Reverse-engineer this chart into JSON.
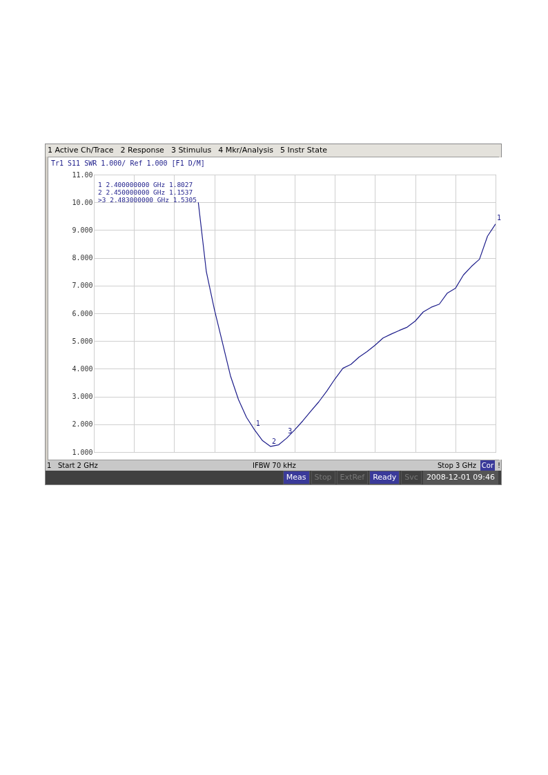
{
  "chart_data": {
    "type": "line",
    "title": "Tr1 S11 SWR 1.000/ Ref 1.000 [F1 D/M]",
    "categories": [
      null,
      null,
      null,
      null,
      null,
      null,
      null,
      null,
      null,
      null,
      null,
      null,
      null,
      null,
      null,
      null,
      null,
      null,
      null,
      null,
      null,
      null,
      null,
      null,
      null,
      null,
      null,
      null,
      null,
      null,
      null,
      null,
      null,
      null,
      null,
      null,
      null,
      null,
      null,
      null,
      null,
      null,
      null,
      null,
      null,
      null,
      null,
      null,
      null,
      null,
      null
    ],
    "series": [
      {
        "color": "#1c1c8a",
        "values": [
          null,
          null,
          null,
          null,
          null,
          null,
          null,
          null,
          null,
          null,
          null,
          null,
          null,
          10.0,
          7.5,
          6.14,
          4.95,
          3.75,
          2.89,
          2.25,
          1.8,
          1.41,
          1.2,
          1.26,
          1.5,
          1.8,
          2.12,
          2.47,
          2.81,
          3.2,
          3.63,
          4.02,
          4.16,
          4.42,
          4.62,
          4.85,
          5.11,
          5.25,
          5.38,
          5.5,
          5.72,
          6.05,
          6.22,
          6.33,
          6.73,
          6.9,
          7.38,
          7.69,
          7.95,
          8.78,
          9.22
        ]
      }
    ],
    "ylim": [
      1,
      11
    ],
    "yticks": [
      {
        "value": 1,
        "label": "1.000"
      },
      {
        "value": 2,
        "label": "2.000"
      },
      {
        "value": 3,
        "label": "3.000"
      },
      {
        "value": 4,
        "label": "4.000"
      },
      {
        "value": 5,
        "label": "5.000"
      },
      {
        "value": 6,
        "label": "6.000"
      },
      {
        "value": 7,
        "label": "7.000"
      },
      {
        "value": 8,
        "label": "8.000"
      },
      {
        "value": 9,
        "label": "9.000"
      },
      {
        "value": 10,
        "label": "10.00"
      },
      {
        "value": 11,
        "label": "11.00"
      }
    ],
    "tick_labels": "y",
    "grid": true,
    "annotations": [
      "1 Active Ch/Trace",
      "2 Response",
      "3 Stimulus",
      "4 Mkr/Analysis",
      "5 Instr State",
      "1  2.400000000 GHz  1.8027",
      "2  2.450000000 GHz  1.1537",
      ">3  2.483000000 GHz  1.5305",
      {
        "text": "1",
        "y": 1.8
      },
      {
        "text": "2",
        "y": 1.15
      },
      {
        "text": "3",
        "y": 1.53
      },
      {
        "text": "1",
        "y": 9.22
      },
      "1",
      "Start 2 GHz",
      "IFBW 70 kHz",
      "Stop 3 GHz",
      "Cor",
      "!",
      "Meas",
      "Stop",
      "ExtRef",
      "Ready",
      "Svc",
      "2008-12-01 09:46"
    ]
  }
}
